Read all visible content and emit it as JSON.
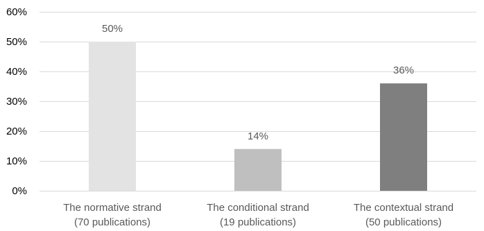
{
  "chart_data": {
    "type": "bar",
    "categories": [
      {
        "line1": "The normative strand",
        "line2": "(70 publications)"
      },
      {
        "line1": "The conditional strand",
        "line2": "(19 publications)"
      },
      {
        "line1": "The contextual strand",
        "line2": "(50 publications)"
      }
    ],
    "values": [
      50,
      14,
      36
    ],
    "data_labels": [
      "50%",
      "14%",
      "36%"
    ],
    "bar_colors": [
      "#e3e3e3",
      "#bfbfbf",
      "#7f7f7f"
    ],
    "ylim": [
      0,
      60
    ],
    "y_ticks": [
      0,
      10,
      20,
      30,
      40,
      50,
      60
    ],
    "y_tick_labels": [
      "0%",
      "10%",
      "20%",
      "30%",
      "40%",
      "50%",
      "60%"
    ],
    "grid": true,
    "legend": "none"
  }
}
